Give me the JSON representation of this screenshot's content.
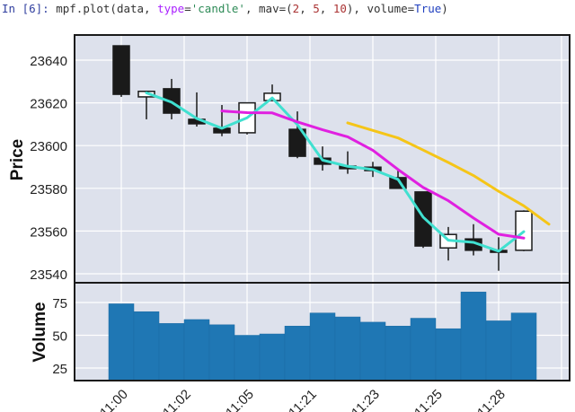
{
  "notebook": {
    "prompt": "In [6]:",
    "code_parts": {
      "pre": " mpf.plot(data, ",
      "kw_type": "type",
      "eq1": "=",
      "str_candle": "'candle'",
      "mid": ", mav=(",
      "n1": "2",
      "c1": ", ",
      "n2": "5",
      "c2": ", ",
      "n3": "10",
      "post": "), volume=",
      "bool": "True",
      "end": ")"
    }
  },
  "chart_data": {
    "type": "candlestick",
    "title": "",
    "xlabel": "",
    "ylabel": "Price",
    "volume_ylabel": "Volume",
    "ylim": [
      23535,
      23652
    ],
    "volume_ylim": [
      16,
      91
    ],
    "yticks": [
      23540,
      23560,
      23580,
      23600,
      23620,
      23640
    ],
    "volume_yticks": [
      25,
      50,
      75
    ],
    "xtick_labels": [
      "11:00",
      "11:02",
      "11:05",
      "11:21",
      "11:23",
      "11:25",
      "11:28"
    ],
    "xtick_positions": [
      0,
      2.5,
      5,
      7.5,
      10,
      12.5,
      15
    ],
    "grid": true,
    "up_color": "#ffffff",
    "down_color": "#1a1a1a",
    "volume_color": "#1f77b4",
    "plot_bg": "#dde1ec",
    "candles": [
      {
        "open": 23646.7,
        "high": 23646.7,
        "low": 23622.8,
        "close": 23624.0,
        "volume": 74
      },
      {
        "open": 23622.8,
        "high": 23625.4,
        "low": 23612.3,
        "close": 23625.4,
        "volume": 68
      },
      {
        "open": 23626.6,
        "high": 23631.2,
        "low": 23612.3,
        "close": 23615.2,
        "volume": 59
      },
      {
        "open": 23612.3,
        "high": 23624.9,
        "low": 23608.9,
        "close": 23610.2,
        "volume": 62
      },
      {
        "open": 23608.1,
        "high": 23619.0,
        "low": 23604.4,
        "close": 23606.0,
        "volume": 58
      },
      {
        "open": 23606.0,
        "high": 23620.0,
        "low": 23605.2,
        "close": 23620.0,
        "volume": 50
      },
      {
        "open": 23621.1,
        "high": 23628.6,
        "low": 23621.1,
        "close": 23624.5,
        "volume": 51
      },
      {
        "open": 23607.6,
        "high": 23616.0,
        "low": 23594.1,
        "close": 23595.0,
        "volume": 57
      },
      {
        "open": 23594.1,
        "high": 23599.6,
        "low": 23588.3,
        "close": 23591.3,
        "volume": 67
      },
      {
        "open": 23590.4,
        "high": 23597.3,
        "low": 23586.8,
        "close": 23589.2,
        "volume": 64
      },
      {
        "open": 23589.9,
        "high": 23592.4,
        "low": 23585.3,
        "close": 23588.3,
        "volume": 60
      },
      {
        "open": 23585.0,
        "high": 23588.3,
        "low": 23580.0,
        "close": 23580.0,
        "volume": 57
      },
      {
        "open": 23578.3,
        "high": 23578.3,
        "low": 23552.1,
        "close": 23553.0,
        "volume": 63
      },
      {
        "open": 23552.1,
        "high": 23561.9,
        "low": 23546.2,
        "close": 23558.4,
        "volume": 55
      },
      {
        "open": 23556.3,
        "high": 23563.2,
        "low": 23548.6,
        "close": 23551.0,
        "volume": 83
      },
      {
        "open": 23550.9,
        "high": 23557.1,
        "low": 23541.4,
        "close": 23550.1,
        "volume": 61
      },
      {
        "open": 23551.0,
        "high": 23569.7,
        "low": 23550.6,
        "close": 23569.3,
        "volume": 67
      }
    ],
    "series": [
      {
        "name": "MA2",
        "color": "#40e0d0",
        "start_index": 1,
        "values": [
          23624.7,
          23620.3,
          23612.7,
          23608.1,
          23613.0,
          23622.3,
          23609.8,
          23593.2,
          23590.3,
          23588.8,
          23584.2,
          23566.5,
          23555.7,
          23554.7,
          23550.6,
          23559.7
        ]
      },
      {
        "name": "MA5",
        "color": "#e020e0",
        "start_index": 4,
        "values": [
          23616.2,
          23615.4,
          23615.3,
          23611.1,
          23607.4,
          23604.1,
          23597.8,
          23588.8,
          23580.4,
          23574.2,
          23566.1,
          23558.5,
          23556.7
        ]
      },
      {
        "name": "MA10",
        "color": "#f5c518",
        "start_index": 9,
        "values": [
          23610.6,
          23607.1,
          23603.6,
          23597.9,
          23592.1,
          23586.0,
          23578.6,
          23571.8,
          23563.2
        ]
      }
    ]
  }
}
